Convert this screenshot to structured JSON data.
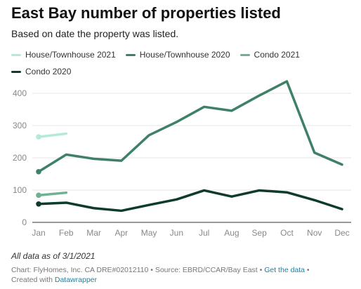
{
  "header": {
    "title": "East Bay number of properties listed",
    "subtitle": "Based on date the property was listed."
  },
  "chart_data": {
    "type": "line",
    "title": "East Bay number of properties listed",
    "subtitle": "Based on date the property was listed.",
    "categories": [
      "Jan",
      "Feb",
      "Mar",
      "Apr",
      "May",
      "Jun",
      "Jul",
      "Aug",
      "Sep",
      "Oct",
      "Nov",
      "Dec"
    ],
    "ylim": [
      0,
      450
    ],
    "yticks": [
      0,
      100,
      200,
      300,
      400
    ],
    "grid": true,
    "legend_position": "top",
    "series": [
      {
        "name": "House/Townhouse 2021",
        "color": "#b3ebd6",
        "values": [
          265,
          275,
          null,
          null,
          null,
          null,
          null,
          null,
          null,
          null,
          null,
          null
        ]
      },
      {
        "name": "House/Townhouse 2020",
        "color": "#3f8167",
        "values": [
          157,
          210,
          197,
          191,
          270,
          311,
          358,
          346,
          393,
          437,
          216,
          179
        ]
      },
      {
        "name": "Condo 2021",
        "color": "#6fb28f",
        "values": [
          84,
          92,
          null,
          null,
          null,
          null,
          null,
          null,
          null,
          null,
          null,
          null
        ]
      },
      {
        "name": "Condo 2020",
        "color": "#0e3b2a",
        "values": [
          57,
          61,
          44,
          36,
          54,
          71,
          99,
          80,
          99,
          93,
          69,
          41
        ]
      }
    ]
  },
  "footer": {
    "note": "All data as of 3/1/2021",
    "source_prefix": "Chart: FlyHomes, Inc. CA DRE#02012110 • Source: EBRD/CCAR/Bay East • ",
    "get_data_label": "Get the data",
    "separator": " •",
    "created_with": "Created with ",
    "datawrapper_label": "Datawrapper"
  }
}
